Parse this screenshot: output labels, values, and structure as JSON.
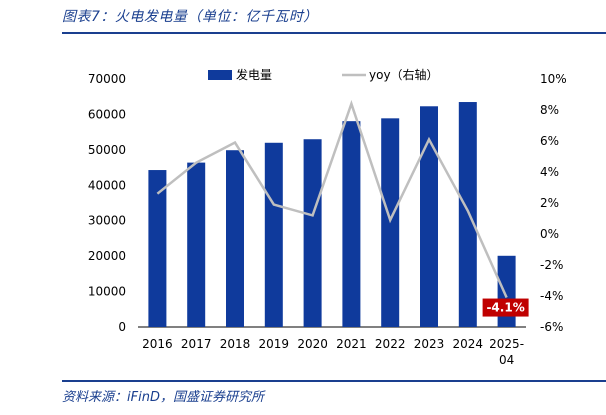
{
  "title": "图表7：火电发电量（单位：亿千瓦时）",
  "source": "资料来源：iFinD，国盛证券研究所",
  "chart_data": {
    "type": "bar",
    "categories": [
      "2016",
      "2017",
      "2018",
      "2019",
      "2020",
      "2021",
      "2022",
      "2023",
      "2024",
      "2025-04"
    ],
    "series": [
      {
        "name": "发电量",
        "type": "bar",
        "axis": "left",
        "color": "#0f3a9c",
        "values": [
          44300,
          46400,
          49900,
          52000,
          53000,
          58100,
          58900,
          62300,
          63500,
          20100
        ]
      },
      {
        "name": "yoy（右轴）",
        "type": "line",
        "axis": "right",
        "color": "#bfbfbf",
        "values": [
          2.6,
          4.6,
          5.9,
          1.9,
          1.2,
          8.4,
          0.9,
          6.1,
          1.5,
          -4.1
        ]
      }
    ],
    "left_axis": {
      "ylim": [
        0,
        70000
      ],
      "ticks": [
        "0",
        "10000",
        "20000",
        "30000",
        "40000",
        "50000",
        "60000",
        "70000"
      ]
    },
    "right_axis": {
      "ylim": [
        -6,
        10
      ],
      "ticks": [
        "-6%",
        "-4%",
        "-2%",
        "0%",
        "2%",
        "4%",
        "6%",
        "8%",
        "10%"
      ]
    },
    "annotation": {
      "text": "-4.1%",
      "color": "#c00000"
    },
    "legend_position": "top"
  }
}
